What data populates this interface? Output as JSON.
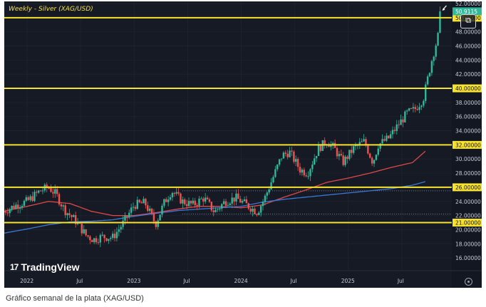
{
  "chart_data": {
    "type": "candlestick",
    "title": "Weekly - Silver (XAG/USD)",
    "x_ticks": [
      "2022",
      "Jul",
      "2023",
      "Jul",
      "2024",
      "Jul",
      "2025",
      "Jul"
    ],
    "y_ticks": [
      "16.00000",
      "18.00000",
      "20.00000",
      "22.00000",
      "24.00000",
      "26.00000",
      "28.00000",
      "30.00000",
      "32.00000",
      "34.00000",
      "36.00000",
      "38.00000",
      "40.00000",
      "42.00000",
      "44.00000",
      "46.00000",
      "48.00000",
      "50.00000",
      "52.00000"
    ],
    "ylim": [
      14.2,
      52.3
    ],
    "x_range": [
      "2021-10-15",
      "2025-12-20"
    ],
    "levels": [
      {
        "value": 21.0,
        "label": "21.00000"
      },
      {
        "value": 26.0,
        "label": "26.00000"
      },
      {
        "value": 32.0,
        "label": "32.00000"
      },
      {
        "value": 40.0,
        "label": "40.00000"
      },
      {
        "value": 50.0,
        "label": "50.00000"
      }
    ],
    "dotted_levels": [
      25.5,
      22.2
    ],
    "current_price_label": "50.9115",
    "moving_averages": [
      {
        "color": "#e04848",
        "points": [
          [
            2021.78,
            22.6
          ],
          [
            2022.0,
            23.3
          ],
          [
            2022.2,
            24.0
          ],
          [
            2022.4,
            23.7
          ],
          [
            2022.6,
            22.6
          ],
          [
            2022.8,
            22.0
          ],
          [
            2023.0,
            22.0
          ],
          [
            2023.2,
            22.4
          ],
          [
            2023.4,
            22.9
          ],
          [
            2023.6,
            23.3
          ],
          [
            2023.8,
            23.3
          ],
          [
            2024.0,
            23.1
          ],
          [
            2024.2,
            23.5
          ],
          [
            2024.4,
            24.6
          ],
          [
            2024.6,
            25.6
          ],
          [
            2024.8,
            26.7
          ],
          [
            2025.0,
            27.3
          ],
          [
            2025.2,
            28.0
          ],
          [
            2025.4,
            28.8
          ],
          [
            2025.6,
            29.5
          ],
          [
            2025.72,
            31.1
          ]
        ]
      },
      {
        "color": "#3a78d8",
        "points": [
          [
            2021.78,
            19.5
          ],
          [
            2022.0,
            20.1
          ],
          [
            2022.2,
            20.7
          ],
          [
            2022.4,
            21.1
          ],
          [
            2022.6,
            21.2
          ],
          [
            2022.8,
            21.4
          ],
          [
            2023.0,
            21.9
          ],
          [
            2023.2,
            22.3
          ],
          [
            2023.4,
            22.7
          ],
          [
            2023.6,
            22.9
          ],
          [
            2023.8,
            23.1
          ],
          [
            2024.0,
            23.3
          ],
          [
            2024.2,
            23.9
          ],
          [
            2024.4,
            24.3
          ],
          [
            2024.6,
            24.6
          ],
          [
            2024.8,
            24.9
          ],
          [
            2025.0,
            25.2
          ],
          [
            2025.2,
            25.5
          ],
          [
            2025.4,
            25.8
          ],
          [
            2025.6,
            26.3
          ],
          [
            2025.72,
            26.8
          ]
        ]
      }
    ],
    "anchors": [
      [
        2021.78,
        22.6
      ],
      [
        2021.9,
        23.5
      ],
      [
        2022.0,
        24.0
      ],
      [
        2022.12,
        25.5
      ],
      [
        2022.2,
        26.0
      ],
      [
        2022.27,
        25.0
      ],
      [
        2022.35,
        22.8
      ],
      [
        2022.45,
        21.3
      ],
      [
        2022.55,
        19.2
      ],
      [
        2022.62,
        18.6
      ],
      [
        2022.7,
        19.0
      ],
      [
        2022.8,
        18.9
      ],
      [
        2022.9,
        21.0
      ],
      [
        2023.0,
        23.5
      ],
      [
        2023.1,
        23.8
      ],
      [
        2023.2,
        20.8
      ],
      [
        2023.28,
        23.8
      ],
      [
        2023.35,
        25.5
      ],
      [
        2023.45,
        24.0
      ],
      [
        2023.55,
        23.5
      ],
      [
        2023.65,
        24.5
      ],
      [
        2023.75,
        22.5
      ],
      [
        2023.85,
        24.0
      ],
      [
        2023.95,
        24.5
      ],
      [
        2024.05,
        23.5
      ],
      [
        2024.15,
        22.5
      ],
      [
        2024.22,
        24.5
      ],
      [
        2024.3,
        27.5
      ],
      [
        2024.38,
        30.5
      ],
      [
        2024.45,
        31.0
      ],
      [
        2024.55,
        28.5
      ],
      [
        2024.62,
        28.0
      ],
      [
        2024.72,
        31.5
      ],
      [
        2024.8,
        32.5
      ],
      [
        2024.87,
        31.5
      ],
      [
        2024.95,
        29.5
      ],
      [
        2025.05,
        31.5
      ],
      [
        2025.15,
        32.5
      ],
      [
        2025.23,
        29.5
      ],
      [
        2025.28,
        32.0
      ],
      [
        2025.38,
        33.0
      ],
      [
        2025.45,
        34.5
      ],
      [
        2025.55,
        36.5
      ],
      [
        2025.62,
        37.0
      ],
      [
        2025.7,
        38.5
      ],
      [
        2025.78,
        44.0
      ],
      [
        2025.84,
        47.5
      ],
      [
        2025.87,
        50.9
      ]
    ]
  },
  "brand": {
    "name": "TradingView",
    "logo": "17"
  },
  "toolbar": {
    "snapshot_icon": "camera-icon",
    "settings_icon": "settings-icon"
  },
  "caption": "Gráfico semanal de la plata (XAG/USD)"
}
